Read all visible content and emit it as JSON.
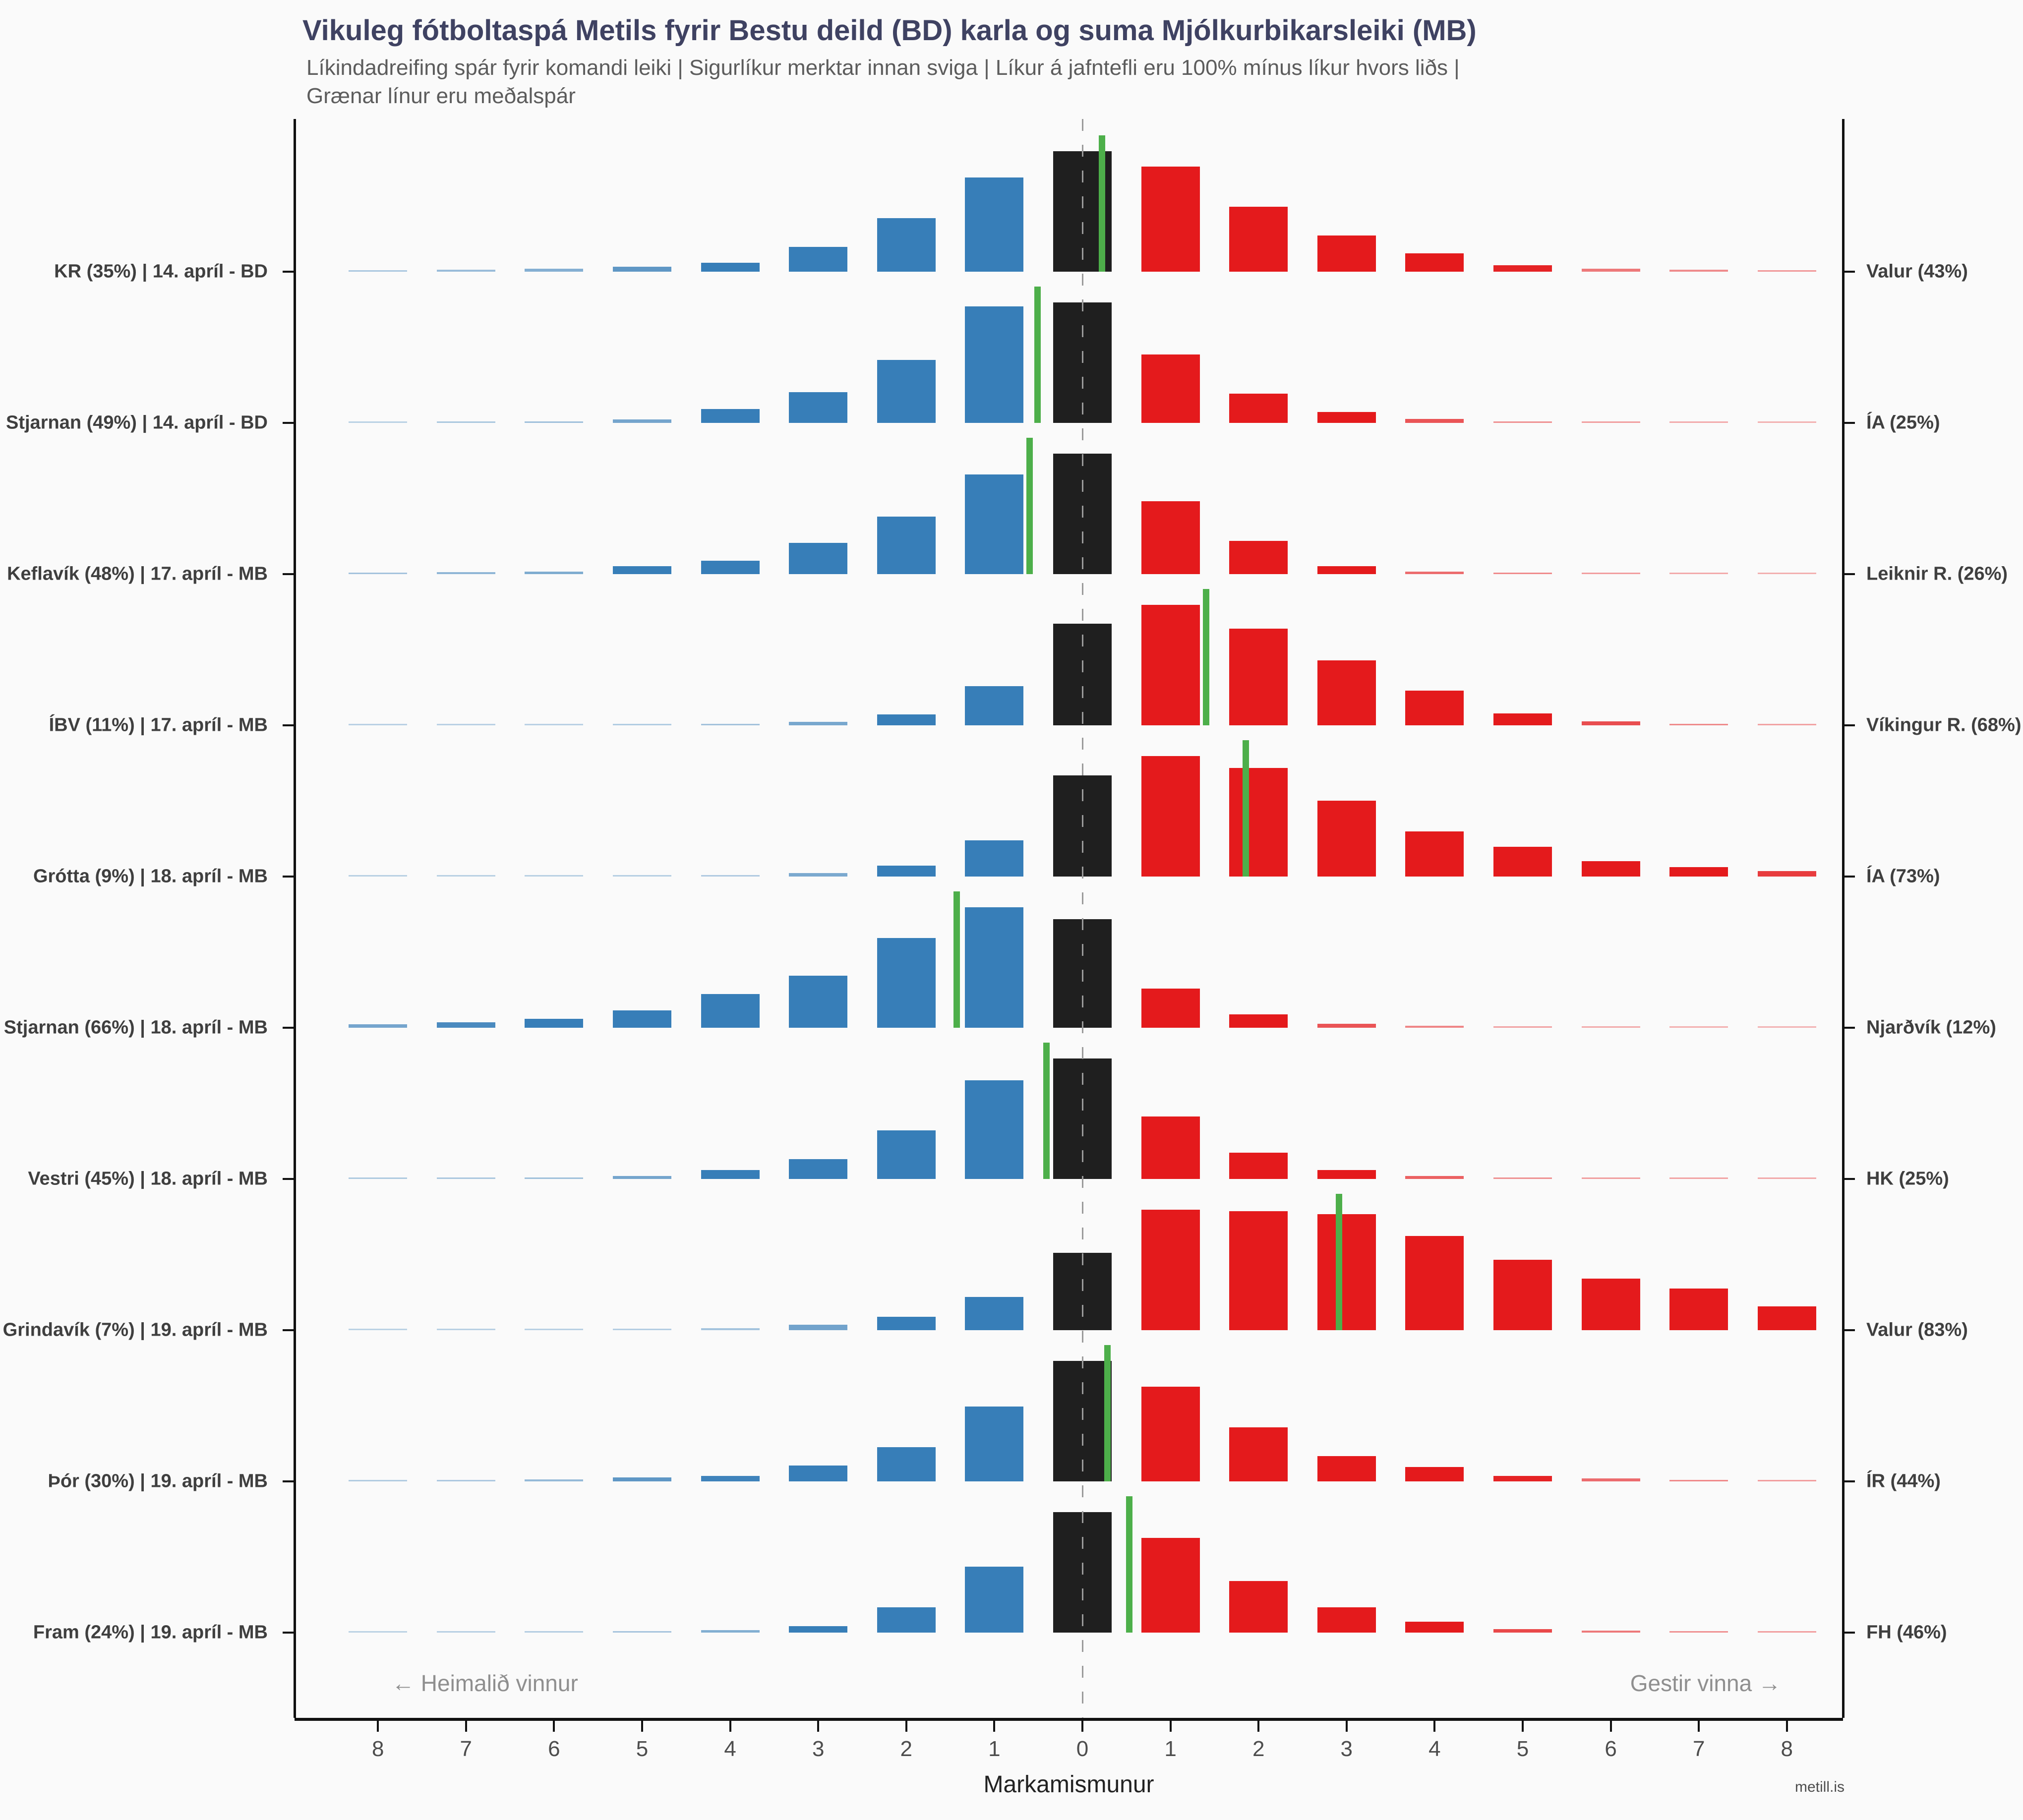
{
  "title": "Vikuleg fótboltaspá Metils fyrir Bestu deild (BD) karla og suma Mjólkurbikarsleiki (MB)",
  "subtitle_line1": "Líkindadreifing spár fyrir komandi leiki | Sigurlíkur merktar innan sviga | Líkur á jafntefli eru 100% mínus líkur hvors liðs |",
  "subtitle_line2": "Grænar línur eru meðalspár",
  "watermark": "metill.is",
  "x_axis": {
    "title": "Markamismunur",
    "tick_labels": [
      "8",
      "7",
      "6",
      "5",
      "4",
      "3",
      "2",
      "1",
      "0",
      "1",
      "2",
      "3",
      "4",
      "5",
      "6",
      "7",
      "8"
    ],
    "left_annotation": "← Heimalið vinnur",
    "right_annotation": "Gestir vinna →"
  },
  "colors": {
    "background": "#fafafa",
    "home_bar": "#377eb8",
    "away_bar": "#e41a1c",
    "draw_bar": "#1f1f1f",
    "mean_line": "#4daf4a",
    "title_text": "#3f4262",
    "subtitle_text": "#5c5c5c",
    "label_text": "#3f3f3f",
    "axis": "#111111",
    "zero_dash": "#9b9b9b"
  },
  "chart_data": {
    "type": "bar",
    "orientation": "mirrored histogram per match, goal difference -8 (home wins) to +8 (away wins)",
    "goal_diff_bins": [
      -8,
      -7,
      -6,
      -5,
      -4,
      -3,
      -2,
      -1,
      0,
      1,
      2,
      3,
      4,
      5,
      6,
      7,
      8
    ],
    "xlabel": "Markamismunur",
    "legend": "blue = home win margins, black = draw, red = away win margins, green line = mean prediction",
    "matches": [
      {
        "home_label": "KR (35%) | 14. apríl - BD",
        "away_label": "Valur (43%)",
        "home_team": "KR",
        "home_win_pct": 35,
        "away_team": "Valur",
        "away_win_pct": 43,
        "draw_pct_estimated": 22,
        "date": "14. apríl",
        "competition": "BD",
        "mean_goal_diff": 0.22,
        "probabilities_pct": [
          0.2,
          0.35,
          0.55,
          0.9,
          1.6,
          4.5,
          9.7,
          17.1,
          21.9,
          19.1,
          11.8,
          6.6,
          3.3,
          1.2,
          0.5,
          0.35,
          0.25
        ]
      },
      {
        "home_label": "Stjarnan (49%) | 14. apríl - BD",
        "away_label": "ÍA (25%)",
        "home_team": "Stjarnan",
        "home_win_pct": 49,
        "away_team": "ÍA",
        "away_win_pct": 25,
        "draw_pct_estimated": 26,
        "date": "14. apríl",
        "competition": "BD",
        "mean_goal_diff": -0.51,
        "probabilities_pct": [
          0.05,
          0.2,
          0.3,
          0.7,
          3.0,
          6.6,
          13.5,
          25.0,
          25.8,
          14.7,
          6.3,
          2.3,
          0.8,
          0.3,
          0.2,
          0.1,
          0.05
        ]
      },
      {
        "home_label": "Keflavík (48%) | 17. apríl - MB",
        "away_label": "Leiknir R. (26%)",
        "home_team": "Keflavík",
        "home_win_pct": 48,
        "away_team": "Leiknir R.",
        "away_win_pct": 26,
        "draw_pct_estimated": 26,
        "date": "17. apríl",
        "competition": "MB",
        "mean_goal_diff": -0.6,
        "probabilities_pct": [
          0.25,
          0.45,
          0.6,
          1.7,
          3.0,
          6.9,
          12.7,
          21.9,
          26.5,
          16.0,
          7.3,
          1.8,
          0.6,
          0.35,
          0.2,
          0.1,
          0.05
        ]
      },
      {
        "home_label": "ÍBV (11%) | 17. apríl - MB",
        "away_label": "Víkingur R. (68%)",
        "home_team": "ÍBV",
        "home_win_pct": 11,
        "away_team": "Víkingur R.",
        "away_win_pct": 68,
        "draw_pct_estimated": 21,
        "date": "17. apríl",
        "competition": "MB",
        "mean_goal_diff": 1.4,
        "probabilities_pct": [
          0.07,
          0.07,
          0.07,
          0.13,
          0.27,
          0.67,
          2.25,
          7.9,
          20.6,
          24.4,
          19.6,
          13.2,
          7.0,
          2.4,
          0.85,
          0.35,
          0.17
        ]
      },
      {
        "home_label": "Grótta (9%) | 18. apríl - MB",
        "away_label": "ÍA (73%)",
        "home_team": "Grótta",
        "home_win_pct": 9,
        "away_team": "ÍA",
        "away_win_pct": 73,
        "draw_pct_estimated": 18,
        "date": "18. apríl",
        "competition": "MB",
        "mean_goal_diff": 1.85,
        "probabilities_pct": [
          0.06,
          0.06,
          0.06,
          0.09,
          0.15,
          0.64,
          1.9,
          6.4,
          17.9,
          21.3,
          19.2,
          13.4,
          8.0,
          5.3,
          2.7,
          1.7,
          1.0
        ]
      },
      {
        "home_label": "Stjarnan (66%) | 18. apríl - MB",
        "away_label": "Njarðvík (12%)",
        "home_team": "Stjarnan",
        "home_win_pct": 66,
        "away_team": "Njarðvík",
        "away_win_pct": 12,
        "draw_pct_estimated": 22,
        "date": "18. apríl",
        "competition": "MB",
        "mean_goal_diff": -1.43,
        "probabilities_pct": [
          0.7,
          1.1,
          1.8,
          3.5,
          6.7,
          10.4,
          18.0,
          24.1,
          21.7,
          7.8,
          2.7,
          0.8,
          0.4,
          0.17,
          0.1,
          0.07,
          0.03
        ]
      },
      {
        "home_label": "Vestri (45%) | 18. apríl - MB",
        "away_label": "HK (25%)",
        "home_team": "Vestri",
        "home_win_pct": 45,
        "away_team": "HK",
        "away_win_pct": 25,
        "draw_pct_estimated": 30,
        "date": "18. apríl",
        "competition": "MB",
        "mean_goal_diff": -0.41,
        "probabilities_pct": [
          0.16,
          0.2,
          0.3,
          0.7,
          2.2,
          4.9,
          12.0,
          24.2,
          29.6,
          15.3,
          6.5,
          2.2,
          0.7,
          0.3,
          0.2,
          0.16,
          0.12
        ]
      },
      {
        "home_label": "Grindavík (7%) | 19. apríl - MB",
        "away_label": "Valur (83%)",
        "home_team": "Grindavík",
        "home_win_pct": 7,
        "away_team": "Valur",
        "away_win_pct": 83,
        "draw_pct_estimated": 10,
        "date": "19. apríl",
        "competition": "MB",
        "mean_goal_diff": 2.91,
        "probabilities_pct": [
          0.04,
          0.06,
          0.06,
          0.11,
          0.26,
          0.73,
          1.75,
          4.3,
          10.0,
          15.6,
          15.4,
          15.0,
          12.2,
          9.1,
          6.7,
          5.4,
          3.1
        ]
      },
      {
        "home_label": "Þór (30%) | 19. apríl - MB",
        "away_label": "ÍR (44%)",
        "home_team": "Þór",
        "home_win_pct": 30,
        "away_team": "ÍR",
        "away_win_pct": 44,
        "draw_pct_estimated": 26,
        "date": "19. apríl",
        "competition": "MB",
        "mean_goal_diff": 0.28,
        "probabilities_pct": [
          0.14,
          0.18,
          0.4,
          0.9,
          1.2,
          3.5,
          7.5,
          16.4,
          26.4,
          20.7,
          11.8,
          5.5,
          3.1,
          1.2,
          0.6,
          0.36,
          0.2
        ]
      },
      {
        "home_label": "Fram (24%) | 19. apríl - MB",
        "away_label": "FH (46%)",
        "home_team": "Fram",
        "home_win_pct": 24,
        "away_team": "FH",
        "away_win_pct": 46,
        "draw_pct_estimated": 30,
        "date": "19. apríl",
        "competition": "MB",
        "mean_goal_diff": 0.53,
        "probabilities_pct": [
          0.04,
          0.08,
          0.12,
          0.24,
          0.56,
          1.6,
          6.1,
          16.0,
          29.3,
          23.0,
          12.6,
          6.1,
          2.6,
          0.9,
          0.5,
          0.3,
          0.2
        ]
      }
    ]
  }
}
